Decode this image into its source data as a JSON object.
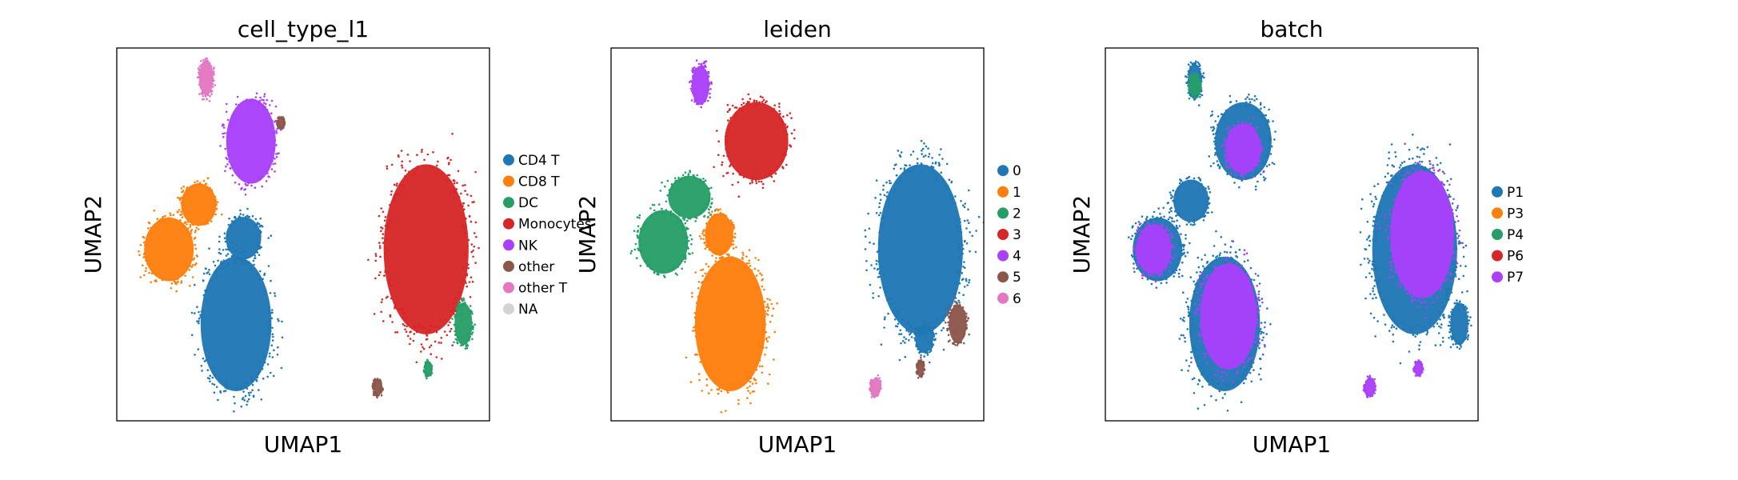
{
  "chart_data": [
    {
      "type": "scatter",
      "title": "cell_type_l1",
      "xlabel": "UMAP1",
      "ylabel": "UMAP2",
      "xlim": [
        0,
        10
      ],
      "ylim": [
        0,
        10
      ],
      "grid": false,
      "legend_placement": "right",
      "legend": [
        {
          "label": "CD4 T",
          "color": "#1f77b4"
        },
        {
          "label": "CD8 T",
          "color": "#ff7f0e"
        },
        {
          "label": "DC",
          "color": "#279e68"
        },
        {
          "label": "Monocytes",
          "color": "#d62728"
        },
        {
          "label": "NK",
          "color": "#aa40fc"
        },
        {
          "label": "other",
          "color": "#8c564b"
        },
        {
          "label": "other T",
          "color": "#e377c2"
        },
        {
          "label": "NA",
          "color": "#d3d3d3"
        }
      ],
      "clusters": [
        {
          "color": "#1f77b4",
          "cx": 3.2,
          "cy": 2.6,
          "rx": 1.0,
          "ry": 1.9
        },
        {
          "color": "#1f77b4",
          "cx": 3.4,
          "cy": 4.9,
          "rx": 0.5,
          "ry": 0.6
        },
        {
          "color": "#ff7f0e",
          "cx": 1.4,
          "cy": 4.6,
          "rx": 0.7,
          "ry": 0.9
        },
        {
          "color": "#ff7f0e",
          "cx": 2.2,
          "cy": 5.8,
          "rx": 0.5,
          "ry": 0.6
        },
        {
          "color": "#d62728",
          "cx": 8.3,
          "cy": 4.6,
          "rx": 1.2,
          "ry": 2.4
        },
        {
          "color": "#279e68",
          "cx": 9.3,
          "cy": 2.6,
          "rx": 0.25,
          "ry": 0.6
        },
        {
          "color": "#279e68",
          "cx": 8.35,
          "cy": 1.4,
          "rx": 0.1,
          "ry": 0.2
        },
        {
          "color": "#8c564b",
          "cx": 7.0,
          "cy": 0.9,
          "rx": 0.12,
          "ry": 0.22
        },
        {
          "color": "#8c564b",
          "cx": 4.4,
          "cy": 8.0,
          "rx": 0.1,
          "ry": 0.15
        },
        {
          "color": "#aa40fc",
          "cx": 3.6,
          "cy": 7.5,
          "rx": 0.7,
          "ry": 1.2
        },
        {
          "color": "#e377c2",
          "cx": 2.4,
          "cy": 9.2,
          "rx": 0.2,
          "ry": 0.5
        }
      ]
    },
    {
      "type": "scatter",
      "title": "leiden",
      "xlabel": "UMAP1",
      "ylabel": "UMAP2",
      "xlim": [
        0,
        10
      ],
      "ylim": [
        0,
        10
      ],
      "grid": false,
      "legend_placement": "right",
      "legend": [
        {
          "label": "0",
          "color": "#1f77b4"
        },
        {
          "label": "1",
          "color": "#ff7f0e"
        },
        {
          "label": "2",
          "color": "#279e68"
        },
        {
          "label": "3",
          "color": "#d62728"
        },
        {
          "label": "4",
          "color": "#aa40fc"
        },
        {
          "label": "5",
          "color": "#8c564b"
        },
        {
          "label": "6",
          "color": "#e377c2"
        }
      ],
      "clusters": [
        {
          "color": "#1f77b4",
          "cx": 8.3,
          "cy": 4.6,
          "rx": 1.2,
          "ry": 2.4
        },
        {
          "color": "#1f77b4",
          "cx": 8.4,
          "cy": 2.2,
          "rx": 0.25,
          "ry": 0.4
        },
        {
          "color": "#ff7f0e",
          "cx": 3.2,
          "cy": 2.6,
          "rx": 1.0,
          "ry": 1.9
        },
        {
          "color": "#ff7f0e",
          "cx": 2.9,
          "cy": 5.0,
          "rx": 0.4,
          "ry": 0.6
        },
        {
          "color": "#279e68",
          "cx": 1.4,
          "cy": 4.8,
          "rx": 0.7,
          "ry": 0.9
        },
        {
          "color": "#279e68",
          "cx": 2.1,
          "cy": 6.0,
          "rx": 0.6,
          "ry": 0.6
        },
        {
          "color": "#d62728",
          "cx": 3.9,
          "cy": 7.5,
          "rx": 0.9,
          "ry": 1.1
        },
        {
          "color": "#aa40fc",
          "cx": 2.4,
          "cy": 9.0,
          "rx": 0.25,
          "ry": 0.55
        },
        {
          "color": "#8c564b",
          "cx": 9.3,
          "cy": 2.6,
          "rx": 0.25,
          "ry": 0.55
        },
        {
          "color": "#8c564b",
          "cx": 8.3,
          "cy": 1.4,
          "rx": 0.1,
          "ry": 0.2
        },
        {
          "color": "#e377c2",
          "cx": 7.1,
          "cy": 0.9,
          "rx": 0.15,
          "ry": 0.25
        }
      ]
    },
    {
      "type": "scatter",
      "title": "batch",
      "xlabel": "UMAP1",
      "ylabel": "UMAP2",
      "xlim": [
        0,
        10
      ],
      "ylim": [
        0,
        10
      ],
      "grid": false,
      "legend_placement": "right",
      "legend": [
        {
          "label": "P1",
          "color": "#1f77b4"
        },
        {
          "label": "P3",
          "color": "#ff7f0e"
        },
        {
          "label": "P4",
          "color": "#279e68"
        },
        {
          "label": "P6",
          "color": "#d62728"
        },
        {
          "label": "P7",
          "color": "#aa40fc"
        }
      ],
      "clusters": [
        {
          "color": "#1f77b4",
          "cx": 3.2,
          "cy": 2.6,
          "rx": 1.0,
          "ry": 1.9
        },
        {
          "color": "#aa40fc",
          "cx": 3.3,
          "cy": 2.8,
          "rx": 0.8,
          "ry": 1.5
        },
        {
          "color": "#1f77b4",
          "cx": 1.4,
          "cy": 4.6,
          "rx": 0.7,
          "ry": 0.9
        },
        {
          "color": "#aa40fc",
          "cx": 1.3,
          "cy": 4.6,
          "rx": 0.5,
          "ry": 0.7
        },
        {
          "color": "#1f77b4",
          "cx": 2.3,
          "cy": 5.9,
          "rx": 0.5,
          "ry": 0.6
        },
        {
          "color": "#1f77b4",
          "cx": 3.7,
          "cy": 7.5,
          "rx": 0.8,
          "ry": 1.1
        },
        {
          "color": "#aa40fc",
          "cx": 3.7,
          "cy": 7.3,
          "rx": 0.5,
          "ry": 0.7
        },
        {
          "color": "#1f77b4",
          "cx": 2.4,
          "cy": 9.1,
          "rx": 0.2,
          "ry": 0.5
        },
        {
          "color": "#279e68",
          "cx": 2.4,
          "cy": 9.0,
          "rx": 0.15,
          "ry": 0.3
        },
        {
          "color": "#1f77b4",
          "cx": 8.3,
          "cy": 4.6,
          "rx": 1.2,
          "ry": 2.4
        },
        {
          "color": "#aa40fc",
          "cx": 8.5,
          "cy": 5.0,
          "rx": 0.9,
          "ry": 1.8
        },
        {
          "color": "#1f77b4",
          "cx": 9.5,
          "cy": 2.6,
          "rx": 0.25,
          "ry": 0.6
        },
        {
          "color": "#aa40fc",
          "cx": 8.4,
          "cy": 1.4,
          "rx": 0.1,
          "ry": 0.2
        },
        {
          "color": "#aa40fc",
          "cx": 7.1,
          "cy": 0.9,
          "rx": 0.15,
          "ry": 0.25
        }
      ]
    }
  ]
}
